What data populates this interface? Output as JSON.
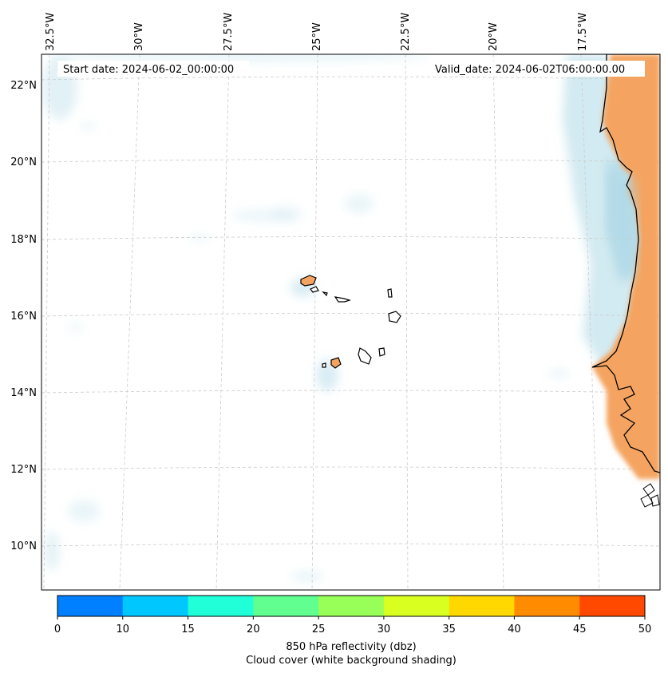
{
  "map": {
    "start_date_label": "Start date: 2024-06-02_00:00:00",
    "valid_date_label": "Valid_date: 2024-06-02T06:00:00.00",
    "lon_labels": [
      "32.5°W",
      "30°W",
      "27.5°W",
      "25°W",
      "22.5°W",
      "20°W",
      "17.5°W"
    ],
    "lat_labels": [
      "22°N",
      "20°N",
      "18°N",
      "16°N",
      "14°N",
      "12°N",
      "10°N"
    ],
    "land_color": "#f4a460",
    "cloud_color": "#add8e6",
    "gridline_color": "#cccccc"
  },
  "colorbar": {
    "ticks": [
      "0",
      "10",
      "15",
      "20",
      "25",
      "30",
      "35",
      "40",
      "45",
      "50"
    ],
    "colors": [
      "#0080ff",
      "#00c8ff",
      "#20ffd8",
      "#60ff90",
      "#98ff58",
      "#d8ff20",
      "#ffd800",
      "#ff8c00",
      "#ff4800"
    ],
    "label_line1": "850 hPa reflectivity (dbz)",
    "label_line2": "Cloud cover (white background shading)"
  }
}
